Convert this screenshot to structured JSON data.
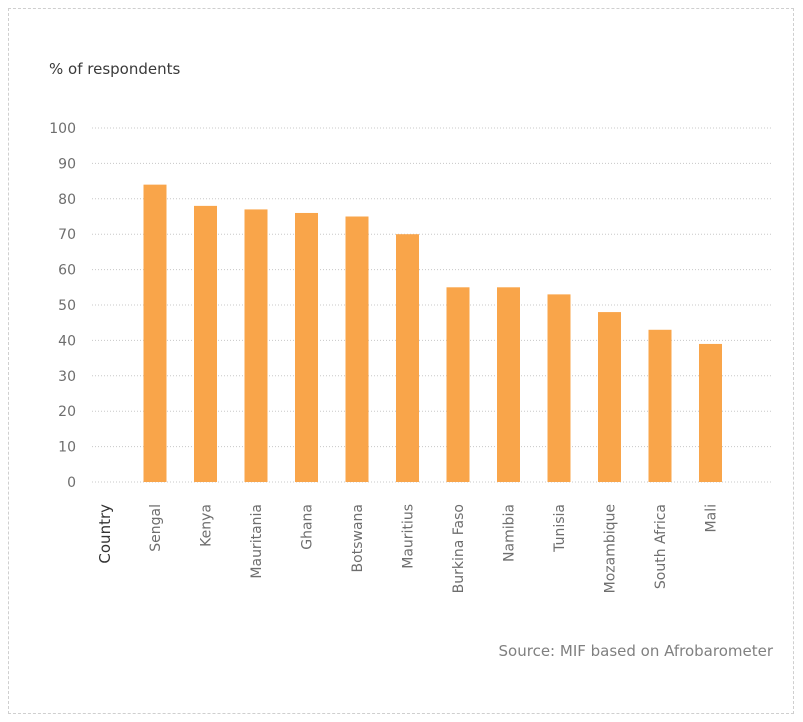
{
  "chart_data": {
    "type": "bar",
    "title": "",
    "ylabel": "% of respondents",
    "xlabel": "Country",
    "source": "Source: MIF based on Afrobarometer",
    "categories": [
      "Sengal",
      "Kenya",
      "Mauritania",
      "Ghana",
      "Botswana",
      "Mauritius",
      "Burkina Faso",
      "Namibia",
      "Tunisia",
      "Mozambique",
      "South Africa",
      "Mali"
    ],
    "values": [
      84,
      78,
      77,
      76,
      75,
      70,
      55,
      55,
      53,
      48,
      43,
      39
    ],
    "ylim": [
      0,
      100
    ],
    "yticks": [
      0,
      10,
      20,
      30,
      40,
      50,
      60,
      70,
      80,
      90,
      100
    ],
    "grid": true,
    "bar_color": "#f9a54a",
    "grid_color": "#c8c8c8"
  }
}
